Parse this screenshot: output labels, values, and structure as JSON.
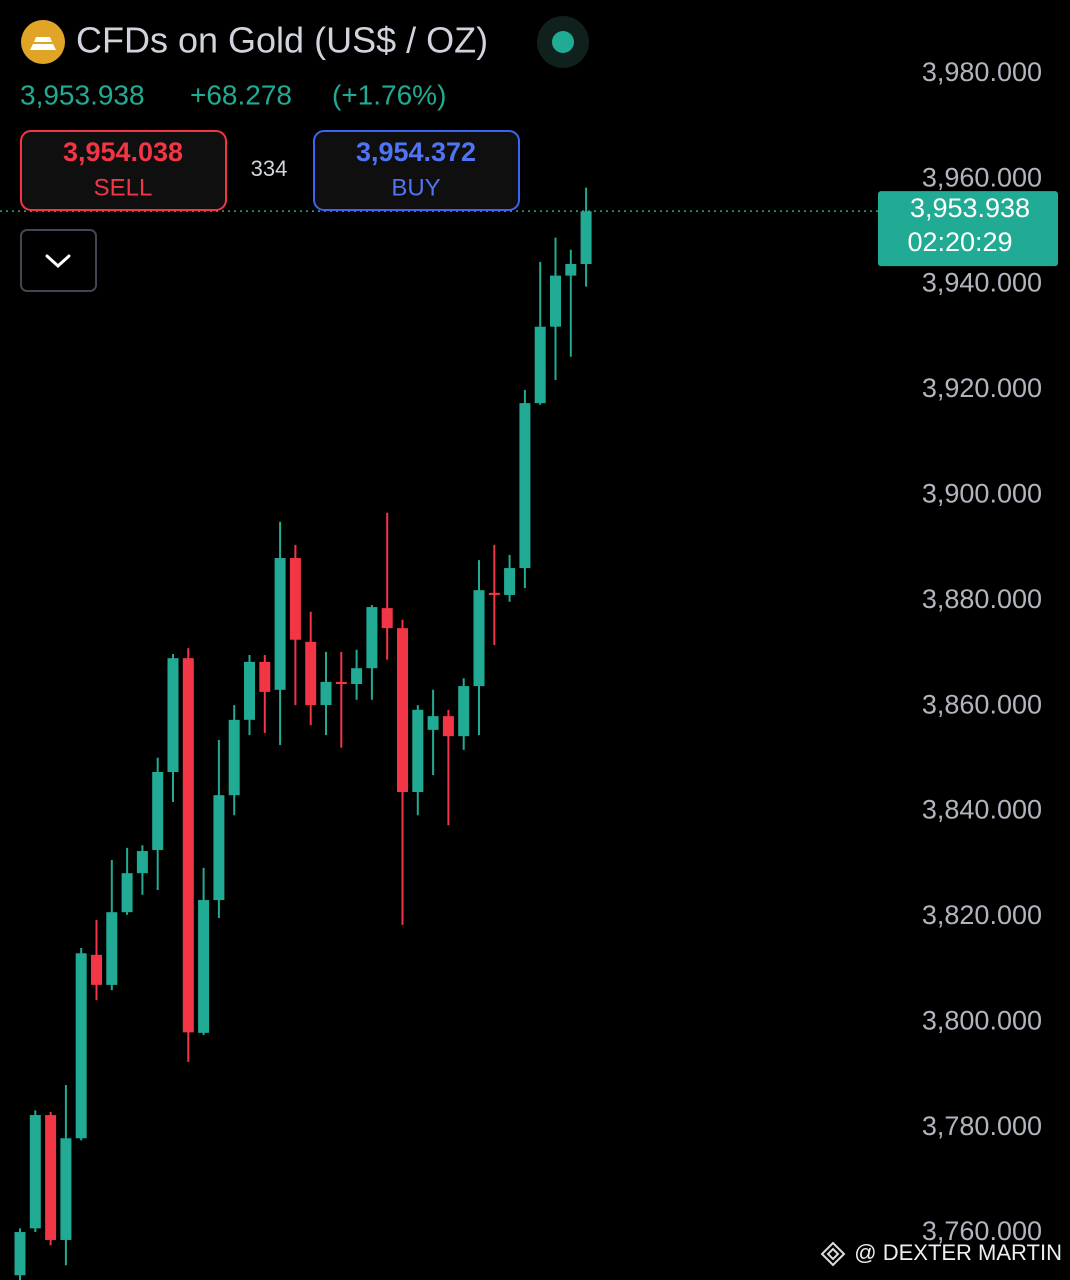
{
  "header": {
    "title": "CFDs on Gold (US$ / OZ)",
    "price": "3,953.938",
    "change": "+68.278",
    "change_pct": "(+1.76%)",
    "sell_price": "3,954.038",
    "sell_label": "SELL",
    "spread": "334",
    "buy_price": "3,954.372",
    "buy_label": "BUY"
  },
  "watermark": "@ DEXTER MARTIN",
  "chart_data": {
    "type": "candlestick",
    "up_color": "#22ab94",
    "down_color": "#f23645",
    "open": [
      3752.0,
      3760.9,
      3782.4,
      3758.7,
      3778.0,
      3812.8,
      3807.1,
      3820.9,
      3828.3,
      3832.7,
      3847.5,
      3869.1,
      3798.0,
      3823.2,
      3843.1,
      3857.4,
      3868.4,
      3863.1,
      3888.1,
      3872.2,
      3860.2,
      3864.6,
      3864.2,
      3867.2,
      3878.6,
      3874.8,
      3843.7,
      3855.5,
      3858.1,
      3854.3,
      3863.8,
      3881.5,
      3881.1,
      3886.2,
      3917.5,
      3932.0,
      3941.7,
      3943.9
    ],
    "high": [
      3760.9,
      3783.3,
      3783.0,
      3788.1,
      3814.1,
      3819.4,
      3830.8,
      3833.1,
      3833.6,
      3850.2,
      3869.9,
      3871.0,
      3829.3,
      3853.6,
      3860.2,
      3869.7,
      3869.7,
      3895.0,
      3890.6,
      3877.9,
      3870.3,
      3870.3,
      3870.7,
      3879.2,
      3896.7,
      3876.4,
      3860.2,
      3863.1,
      3859.3,
      3865.3,
      3887.7,
      3890.6,
      3888.7,
      3920.0,
      3944.3,
      3948.9,
      3946.6,
      3958.4
    ],
    "low": [
      3751.1,
      3760.2,
      3757.7,
      3753.9,
      3777.6,
      3804.2,
      3806.1,
      3820.4,
      3824.2,
      3825.1,
      3841.8,
      3792.5,
      3797.6,
      3819.8,
      3839.3,
      3854.5,
      3854.9,
      3852.6,
      3860.2,
      3856.4,
      3854.5,
      3852.1,
      3861.2,
      3861.2,
      3868.8,
      3818.5,
      3839.3,
      3846.9,
      3837.4,
      3851.7,
      3854.5,
      3871.6,
      3879.8,
      3882.4,
      3917.2,
      3921.9,
      3926.3,
      3939.6
    ],
    "close": [
      3760.2,
      3782.4,
      3758.7,
      3778.0,
      3813.1,
      3807.1,
      3820.9,
      3828.3,
      3832.5,
      3847.5,
      3869.1,
      3798.1,
      3823.2,
      3843.1,
      3857.4,
      3868.4,
      3862.7,
      3888.1,
      3872.6,
      3860.2,
      3864.6,
      3864.2,
      3867.2,
      3878.8,
      3874.8,
      3843.7,
      3859.3,
      3858.1,
      3854.3,
      3863.8,
      3882.0,
      3881.1,
      3886.2,
      3917.5,
      3932.0,
      3941.7,
      3943.9,
      3953.9
    ],
    "ylim": [
      3751.1,
      3994.0
    ],
    "yticks": [
      {
        "value": 3760,
        "label": "3,760.000"
      },
      {
        "value": 3780,
        "label": "3,780.000"
      },
      {
        "value": 3800,
        "label": "3,800.000"
      },
      {
        "value": 3820,
        "label": "3,820.000"
      },
      {
        "value": 3840,
        "label": "3,840.000"
      },
      {
        "value": 3860,
        "label": "3,860.000"
      },
      {
        "value": 3880,
        "label": "3,880.000"
      },
      {
        "value": 3900,
        "label": "3,900.000"
      },
      {
        "value": 3920,
        "label": "3,920.000"
      },
      {
        "value": 3940,
        "label": "3,940.000"
      },
      {
        "value": 3960,
        "label": "3,960.000"
      },
      {
        "value": 3980,
        "label": "3,980.000"
      }
    ],
    "last_price": {
      "value": 3953.938,
      "label": "3,953.938"
    },
    "countdown": "02:20:29"
  }
}
